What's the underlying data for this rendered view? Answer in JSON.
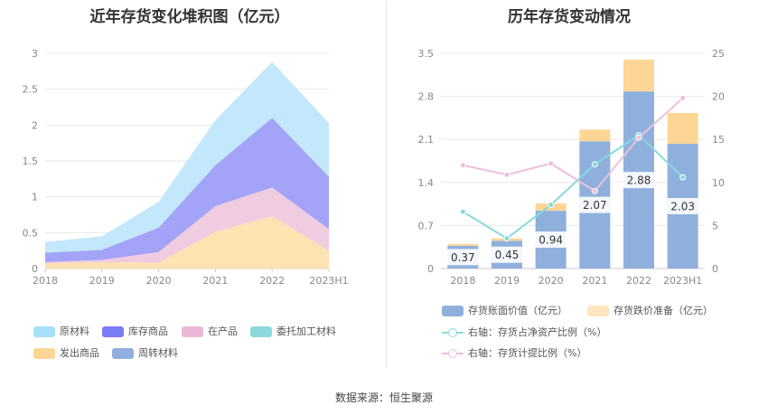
{
  "source": "数据来源：恒生聚源",
  "chart_data": [
    {
      "type": "area",
      "stacked": true,
      "title": "近年存货变化堆积图（亿元）",
      "categories": [
        "2018",
        "2019",
        "2020",
        "2021",
        "2022",
        "2023H1"
      ],
      "ylim": [
        0,
        3
      ],
      "yticks": [
        "0",
        "0.5",
        "1",
        "1.5",
        "2",
        "2.5",
        "3"
      ],
      "series": [
        {
          "name": "发出商品",
          "color": "#fde2b2",
          "values": [
            0.07,
            0.09,
            0.08,
            0.51,
            0.73,
            0.25
          ]
        },
        {
          "name": "在产品",
          "color": "#f0cce0",
          "values": [
            0.02,
            0.03,
            0.15,
            0.36,
            0.4,
            0.3
          ]
        },
        {
          "name": "库存商品",
          "color": "#a3a3f7",
          "values": [
            0.13,
            0.14,
            0.34,
            0.57,
            0.97,
            0.73
          ]
        },
        {
          "name": "原材料",
          "color": "#c3e8fb",
          "values": [
            0.15,
            0.19,
            0.36,
            0.63,
            0.78,
            0.75
          ]
        },
        {
          "name": "委托加工材料",
          "color": "#8bd9dc",
          "values": [
            0,
            0,
            0,
            0,
            0,
            0
          ]
        },
        {
          "name": "周转材料",
          "color": "#90afdd",
          "values": [
            0,
            0,
            0,
            0,
            0,
            0
          ]
        }
      ],
      "legend": [
        {
          "label": "原材料",
          "color": "#a6e0fa"
        },
        {
          "label": "库存商品",
          "color": "#7b7bf3"
        },
        {
          "label": "在产品",
          "color": "#eab8d6"
        },
        {
          "label": "委托加工材料",
          "color": "#8bd9dc"
        },
        {
          "label": "发出商品",
          "color": "#fdd695"
        },
        {
          "label": "周转材料",
          "color": "#90afdd"
        }
      ]
    },
    {
      "type": "bar+line",
      "title": "历年存货变动情况",
      "categories": [
        "2018",
        "2019",
        "2020",
        "2021",
        "2022",
        "2023H1"
      ],
      "ylim_left": [
        0,
        3.5
      ],
      "yticks_left": [
        "0",
        "0.7",
        "1.4",
        "2.1",
        "2.8",
        "3.5"
      ],
      "ylim_right": [
        0,
        25
      ],
      "yticks_right": [
        "0",
        "5",
        "10",
        "15",
        "20",
        "25"
      ],
      "bars": [
        {
          "name": "存货账面价值（亿元）",
          "color": "#8fb0dc",
          "values": [
            0.37,
            0.45,
            0.94,
            2.07,
            2.88,
            2.03
          ],
          "labels": [
            "0.37",
            "0.45",
            "0.94",
            "2.07",
            "2.88",
            "2.03"
          ]
        },
        {
          "name": "存货跌价准备（亿元）",
          "color": "#fdd695",
          "values": [
            0.03,
            0.04,
            0.12,
            0.19,
            0.52,
            0.5
          ]
        }
      ],
      "lines": [
        {
          "name": "右轴：存货占净资产比例（%）",
          "color": "#86dadd",
          "values": [
            6.6,
            3.5,
            7.4,
            12.1,
            15.5,
            10.6
          ]
        },
        {
          "name": "右轴：存货计提比例（%）",
          "color": "#eebfdc",
          "values": [
            12.0,
            10.9,
            12.2,
            9.0,
            15.2,
            19.8
          ]
        }
      ]
    }
  ]
}
